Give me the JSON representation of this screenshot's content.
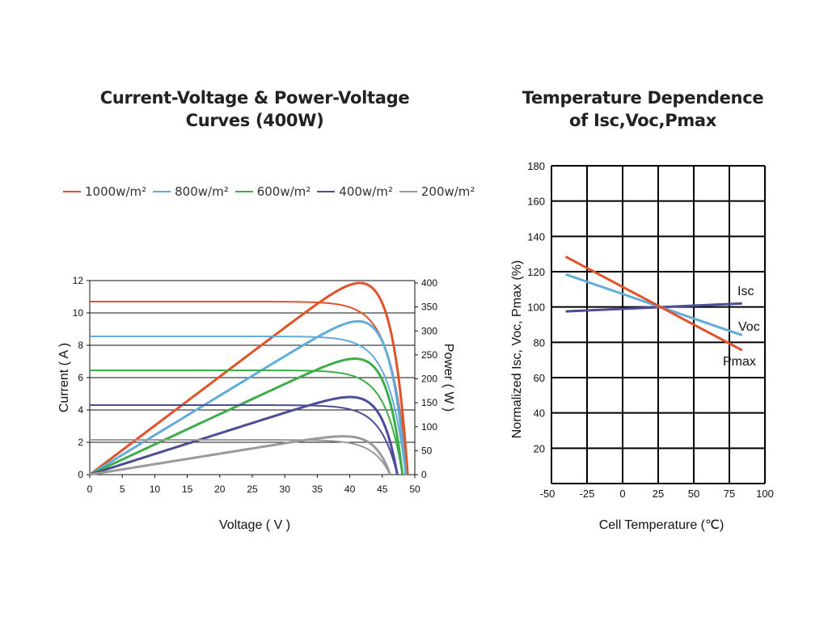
{
  "chart_data": [
    {
      "type": "line",
      "title": "Current-Voltage & Power-Voltage Curves (400W)",
      "xlabel": "Voltage ( V )",
      "ylabel": "Current ( A )",
      "y2label": "Power ( W )",
      "xlim": [
        0,
        50
      ],
      "ylim": [
        0,
        12
      ],
      "y2lim": [
        0,
        400
      ],
      "xticks": [
        0,
        5,
        10,
        15,
        20,
        25,
        30,
        35,
        40,
        45,
        50
      ],
      "yticks": [
        0,
        2,
        4,
        6,
        8,
        10,
        12
      ],
      "y2ticks": [
        0,
        50,
        100,
        150,
        200,
        250,
        300,
        350,
        400
      ],
      "grid": "horizontal",
      "legend_position": "top",
      "series": [
        {
          "name": "1000w/m²",
          "color": "#e0532a",
          "isc": 10.7,
          "voc": 48.9,
          "knee": 2.6,
          "pmax_w": 400
        },
        {
          "name": "800w/m²",
          "color": "#62acd9",
          "isc": 8.55,
          "voc": 48.6,
          "knee": 2.6,
          "pmax_w": 320
        },
        {
          "name": "600w/m²",
          "color": "#3fac4a",
          "isc": 6.45,
          "voc": 48.1,
          "knee": 2.6,
          "pmax_w": 242
        },
        {
          "name": "400w/m²",
          "color": "#4d4c96",
          "isc": 4.3,
          "voc": 47.3,
          "knee": 2.6,
          "pmax_w": 162
        },
        {
          "name": "200w/m²",
          "color": "#9a9a9a",
          "isc": 2.15,
          "voc": 46.2,
          "knee": 2.6,
          "pmax_w": 80
        }
      ]
    },
    {
      "type": "line",
      "title": "Temperature Dependence of Isc,Voc,Pmax",
      "xlabel": "Cell Temperature (℃)",
      "ylabel": "Normalized Isc, Voc, Pmax (%)",
      "xlim": [
        -50,
        100
      ],
      "ylim": [
        0,
        180
      ],
      "xticks": [
        -50,
        -25,
        0,
        25,
        50,
        75,
        100
      ],
      "yticks": [
        20,
        40,
        60,
        80,
        100,
        120,
        140,
        160,
        180
      ],
      "grid": "both",
      "series": [
        {
          "name": "Isc",
          "color": "#4d4c96",
          "x": [
            -40,
            84
          ],
          "y": [
            97.5,
            102
          ]
        },
        {
          "name": "Voc",
          "color": "#62acd9",
          "x": [
            -40,
            84
          ],
          "y": [
            118.5,
            84
          ]
        },
        {
          "name": "Pmax",
          "color": "#e0532a",
          "x": [
            -40,
            84
          ],
          "y": [
            128.5,
            75.5
          ]
        }
      ]
    }
  ],
  "titles": {
    "left_line1": "Current-Voltage & Power-Voltage",
    "left_line2": "Curves (400W)",
    "right_line1": "Temperature Dependence",
    "right_line2": "of Isc,Voc,Pmax"
  }
}
